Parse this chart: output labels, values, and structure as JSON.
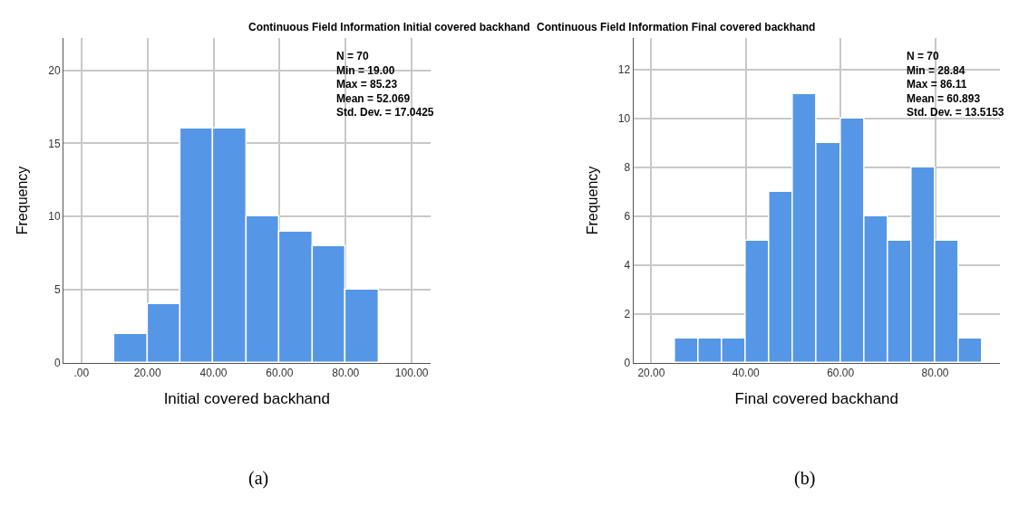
{
  "chart_data": [
    {
      "type": "histogram",
      "title": "Continuous Field Information Initial covered backhand",
      "xlabel": "Initial covered backhand",
      "ylabel": "Frequency",
      "bins": [
        10,
        20,
        30,
        40,
        50,
        60,
        70,
        80,
        90
      ],
      "values": [
        2,
        4,
        16,
        16,
        10,
        9,
        8,
        5
      ],
      "color": "#5596e6",
      "xlim": [
        -5.4,
        105.6
      ],
      "xticks": [
        {
          "value": 0,
          "label": ".00"
        },
        {
          "value": 20,
          "label": "20.00"
        },
        {
          "value": 40,
          "label": "40.00"
        },
        {
          "value": 60,
          "label": "60.00"
        },
        {
          "value": 80,
          "label": "80.00"
        },
        {
          "value": 100,
          "label": "100.00"
        }
      ],
      "ylim": [
        0,
        22.2
      ],
      "yticks": [
        0,
        5,
        10,
        15,
        20
      ],
      "grid": true,
      "annotations": [
        "N = 70\nMin = 19.00\nMax = 85.23\nMean = 52.069\nStd. Dev. = 17.0425",
        "(a)"
      ]
    },
    {
      "type": "histogram",
      "title": "Continuous Field Information Final covered backhand",
      "xlabel": "Final covered backhand",
      "ylabel": "Frequency",
      "bins": [
        25,
        30,
        35,
        40,
        45,
        50,
        55,
        60,
        65,
        70,
        75,
        80,
        85,
        90
      ],
      "values": [
        1,
        1,
        1,
        5,
        7,
        11,
        9,
        10,
        6,
        5,
        8,
        5,
        1
      ],
      "color": "#5596e6",
      "xlim": [
        16.2,
        93.7
      ],
      "xticks": [
        {
          "value": 20,
          "label": "20.00"
        },
        {
          "value": 40,
          "label": "40.00"
        },
        {
          "value": 60,
          "label": "60.00"
        },
        {
          "value": 80,
          "label": "80.00"
        }
      ],
      "ylim": [
        0,
        13.3
      ],
      "yticks": [
        0,
        2,
        4,
        6,
        8,
        10,
        12
      ],
      "grid": true,
      "annotations": [
        "N = 70\nMin = 28.84\nMax = 86.11\nMean = 60.893\nStd. Dev. = 13.5153",
        "(b)"
      ]
    }
  ]
}
